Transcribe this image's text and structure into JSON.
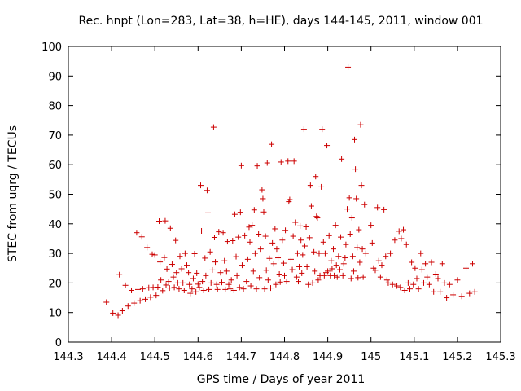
{
  "chart_data": {
    "type": "scatter",
    "title": "Rec. hnpt (Lon=283, Lat=38, h=HE), days 144-145, 2011, window 001",
    "xlabel": "GPS time / Days of year 2011",
    "ylabel": "STEC from uqrg / TECUs",
    "xlim": [
      144.3,
      145.3
    ],
    "ylim": [
      0,
      100
    ],
    "xticks": [
      "144.3",
      "144.4",
      "144.5",
      "144.6",
      "144.7",
      "144.8",
      "144.9",
      "145",
      "145.1",
      "145.2",
      "145.3"
    ],
    "yticks": [
      "0",
      "10",
      "20",
      "30",
      "40",
      "50",
      "60",
      "70",
      "80",
      "90",
      "100"
    ],
    "grid": false,
    "legend": "none",
    "marker": "plus",
    "color": "#cc0000",
    "points": [
      [
        144.388,
        13.5
      ],
      [
        144.403,
        9.8
      ],
      [
        144.415,
        9.1
      ],
      [
        144.418,
        22.8
      ],
      [
        144.425,
        10.6
      ],
      [
        144.432,
        19.2
      ],
      [
        144.438,
        12.2
      ],
      [
        144.446,
        17.5
      ],
      [
        144.452,
        13.2
      ],
      [
        144.458,
        37.0
      ],
      [
        144.461,
        17.8
      ],
      [
        144.466,
        14.0
      ],
      [
        144.47,
        35.6
      ],
      [
        144.472,
        18.0
      ],
      [
        144.478,
        14.5
      ],
      [
        144.482,
        32.0
      ],
      [
        144.486,
        18.4
      ],
      [
        144.49,
        15.2
      ],
      [
        144.494,
        29.7
      ],
      [
        144.496,
        18.5
      ],
      [
        144.5,
        29.5
      ],
      [
        144.503,
        15.8
      ],
      [
        144.507,
        18.6
      ],
      [
        144.51,
        40.9
      ],
      [
        144.512,
        27.1
      ],
      [
        144.514,
        21.0
      ],
      [
        144.518,
        17.4
      ],
      [
        144.522,
        28.6
      ],
      [
        144.524,
        41.0
      ],
      [
        144.526,
        19.3
      ],
      [
        144.528,
        24.7
      ],
      [
        144.532,
        20.5
      ],
      [
        144.534,
        18.3
      ],
      [
        144.536,
        38.5
      ],
      [
        144.54,
        26.3
      ],
      [
        144.543,
        22.0
      ],
      [
        144.545,
        18.5
      ],
      [
        144.548,
        34.4
      ],
      [
        144.55,
        23.5
      ],
      [
        144.553,
        20.0
      ],
      [
        144.556,
        18.0
      ],
      [
        144.558,
        29.0
      ],
      [
        144.562,
        24.8
      ],
      [
        144.565,
        20.0
      ],
      [
        144.568,
        17.5
      ],
      [
        144.57,
        30.0
      ],
      [
        144.574,
        26.0
      ],
      [
        144.578,
        23.5
      ],
      [
        144.58,
        19.5
      ],
      [
        144.582,
        16.5
      ],
      [
        144.586,
        18.0
      ],
      [
        144.589,
        21.5
      ],
      [
        144.592,
        29.9
      ],
      [
        144.595,
        17.0
      ],
      [
        144.597,
        23.3
      ],
      [
        144.6,
        19.6
      ],
      [
        144.603,
        18.5
      ],
      [
        144.606,
        53.0
      ],
      [
        144.608,
        37.6
      ],
      [
        144.61,
        20.5
      ],
      [
        144.613,
        17.5
      ],
      [
        144.616,
        28.4
      ],
      [
        144.618,
        22.5
      ],
      [
        144.621,
        51.3
      ],
      [
        144.623,
        43.7
      ],
      [
        144.625,
        17.8
      ],
      [
        144.628,
        30.5
      ],
      [
        144.63,
        20.0
      ],
      [
        144.633,
        24.4
      ],
      [
        144.636,
        72.7
      ],
      [
        144.638,
        35.4
      ],
      [
        144.64,
        27.1
      ],
      [
        144.643,
        19.5
      ],
      [
        144.645,
        17.8
      ],
      [
        144.648,
        37.3
      ],
      [
        144.652,
        23.5
      ],
      [
        144.655,
        20.2
      ],
      [
        144.658,
        37.0
      ],
      [
        144.661,
        27.5
      ],
      [
        144.663,
        17.8
      ],
      [
        144.666,
        24.0
      ],
      [
        144.668,
        34.0
      ],
      [
        144.671,
        19.5
      ],
      [
        144.674,
        18.0
      ],
      [
        144.677,
        21.0
      ],
      [
        144.68,
        34.3
      ],
      [
        144.683,
        17.5
      ],
      [
        144.685,
        43.2
      ],
      [
        144.688,
        28.9
      ],
      [
        144.69,
        22.5
      ],
      [
        144.693,
        35.5
      ],
      [
        144.696,
        18.5
      ],
      [
        144.698,
        43.9
      ],
      [
        144.7,
        59.7
      ],
      [
        144.702,
        26.0
      ],
      [
        144.705,
        18.0
      ],
      [
        144.708,
        36.0
      ],
      [
        144.712,
        20.5
      ],
      [
        144.715,
        28.0
      ],
      [
        144.718,
        38.9
      ],
      [
        144.72,
        33.8
      ],
      [
        144.722,
        19.0
      ],
      [
        144.725,
        39.5
      ],
      [
        144.728,
        24.0
      ],
      [
        144.73,
        44.7
      ],
      [
        144.732,
        30.0
      ],
      [
        144.735,
        18.0
      ],
      [
        144.737,
        59.6
      ],
      [
        144.74,
        36.5
      ],
      [
        144.742,
        21.8
      ],
      [
        144.745,
        31.5
      ],
      [
        144.748,
        51.5
      ],
      [
        144.75,
        48.5
      ],
      [
        144.752,
        44.0
      ],
      [
        144.754,
        18.0
      ],
      [
        144.756,
        35.8
      ],
      [
        144.758,
        24.3
      ],
      [
        144.76,
        60.6
      ],
      [
        144.762,
        21.0
      ],
      [
        144.765,
        28.3
      ],
      [
        144.768,
        18.3
      ],
      [
        144.77,
        66.9
      ],
      [
        144.772,
        33.5
      ],
      [
        144.775,
        26.5
      ],
      [
        144.778,
        38.3
      ],
      [
        144.78,
        19.5
      ],
      [
        144.782,
        31.5
      ],
      [
        144.785,
        28.5
      ],
      [
        144.788,
        23.0
      ],
      [
        144.79,
        20.3
      ],
      [
        144.792,
        60.9
      ],
      [
        144.795,
        34.5
      ],
      [
        144.798,
        26.7
      ],
      [
        144.8,
        22.5
      ],
      [
        144.802,
        37.8
      ],
      [
        144.805,
        20.5
      ],
      [
        144.808,
        61.2
      ],
      [
        144.81,
        47.5
      ],
      [
        144.812,
        48.2
      ],
      [
        144.815,
        28.0
      ],
      [
        144.818,
        24.5
      ],
      [
        144.82,
        35.8
      ],
      [
        144.822,
        61.2
      ],
      [
        144.825,
        40.5
      ],
      [
        144.828,
        22.0
      ],
      [
        144.83,
        30.0
      ],
      [
        144.832,
        20.5
      ],
      [
        144.834,
        25.5
      ],
      [
        144.836,
        39.3
      ],
      [
        144.838,
        34.5
      ],
      [
        144.84,
        23.3
      ],
      [
        144.842,
        29.5
      ],
      [
        144.845,
        72.0
      ],
      [
        144.847,
        32.5
      ],
      [
        144.85,
        39.0
      ],
      [
        144.852,
        25.5
      ],
      [
        144.855,
        19.5
      ],
      [
        144.858,
        35.3
      ],
      [
        144.86,
        53.0
      ],
      [
        144.862,
        46.0
      ],
      [
        144.865,
        20.0
      ],
      [
        144.868,
        30.5
      ],
      [
        144.87,
        24.0
      ],
      [
        144.872,
        56.0
      ],
      [
        144.874,
        42.5
      ],
      [
        144.876,
        42.0
      ],
      [
        144.878,
        21.0
      ],
      [
        144.88,
        30.0
      ],
      [
        144.882,
        22.5
      ],
      [
        144.885,
        52.5
      ],
      [
        144.887,
        72.0
      ],
      [
        144.89,
        33.8
      ],
      [
        144.892,
        22.5
      ],
      [
        144.894,
        30.0
      ],
      [
        144.896,
        23.5
      ],
      [
        144.898,
        66.5
      ],
      [
        144.9,
        24.0
      ],
      [
        144.903,
        36.0
      ],
      [
        144.906,
        22.5
      ],
      [
        144.908,
        27.5
      ],
      [
        144.91,
        24.8
      ],
      [
        144.913,
        31.5
      ],
      [
        144.915,
        22.5
      ],
      [
        144.918,
        39.5
      ],
      [
        144.92,
        26.0
      ],
      [
        144.922,
        22.0
      ],
      [
        144.925,
        29.0
      ],
      [
        144.928,
        24.5
      ],
      [
        144.93,
        35.5
      ],
      [
        144.932,
        61.9
      ],
      [
        144.935,
        22.5
      ],
      [
        144.937,
        26.5
      ],
      [
        144.94,
        28.5
      ],
      [
        144.942,
        33.0
      ],
      [
        144.945,
        45.0
      ],
      [
        144.947,
        93.0
      ],
      [
        144.95,
        48.8
      ],
      [
        144.952,
        36.5
      ],
      [
        144.954,
        21.5
      ],
      [
        144.956,
        42.0
      ],
      [
        144.958,
        29.0
      ],
      [
        144.96,
        24.0
      ],
      [
        144.962,
        68.5
      ],
      [
        144.964,
        58.5
      ],
      [
        144.966,
        48.5
      ],
      [
        144.968,
        32.0
      ],
      [
        144.97,
        21.8
      ],
      [
        144.972,
        38.0
      ],
      [
        144.974,
        27.0
      ],
      [
        144.976,
        73.5
      ],
      [
        144.978,
        53.0
      ],
      [
        144.98,
        31.5
      ],
      [
        144.982,
        22.0
      ],
      [
        144.985,
        46.5
      ],
      [
        144.988,
        30.0
      ],
      [
        145.0,
        39.5
      ],
      [
        145.003,
        33.5
      ],
      [
        145.006,
        25.0
      ],
      [
        145.01,
        24.3
      ],
      [
        145.015,
        45.5
      ],
      [
        145.018,
        27.5
      ],
      [
        145.022,
        22.0
      ],
      [
        145.025,
        26.0
      ],
      [
        145.03,
        44.8
      ],
      [
        145.034,
        29.0
      ],
      [
        145.037,
        21.0
      ],
      [
        145.04,
        20.0
      ],
      [
        145.045,
        30.0
      ],
      [
        145.05,
        19.5
      ],
      [
        145.055,
        34.5
      ],
      [
        145.06,
        19.0
      ],
      [
        145.065,
        37.5
      ],
      [
        145.068,
        18.5
      ],
      [
        145.07,
        35.0
      ],
      [
        145.075,
        38.0
      ],
      [
        145.078,
        17.5
      ],
      [
        145.082,
        33.0
      ],
      [
        145.086,
        20.0
      ],
      [
        145.09,
        18.0
      ],
      [
        145.094,
        27.0
      ],
      [
        145.098,
        19.5
      ],
      [
        145.102,
        25.0
      ],
      [
        145.106,
        21.5
      ],
      [
        145.11,
        18.0
      ],
      [
        145.115,
        30.0
      ],
      [
        145.118,
        24.5
      ],
      [
        145.122,
        20.0
      ],
      [
        145.126,
        26.5
      ],
      [
        145.13,
        22.0
      ],
      [
        145.135,
        19.5
      ],
      [
        145.14,
        27.0
      ],
      [
        145.145,
        17.0
      ],
      [
        145.15,
        23.0
      ],
      [
        145.155,
        21.5
      ],
      [
        145.16,
        17.0
      ],
      [
        145.165,
        26.5
      ],
      [
        145.17,
        20.0
      ],
      [
        145.175,
        15.0
      ],
      [
        145.182,
        19.5
      ],
      [
        145.19,
        16.0
      ],
      [
        145.2,
        21.0
      ],
      [
        145.21,
        15.5
      ],
      [
        145.22,
        25.0
      ],
      [
        145.228,
        16.5
      ],
      [
        145.235,
        26.5
      ],
      [
        145.24,
        17.0
      ]
    ]
  }
}
